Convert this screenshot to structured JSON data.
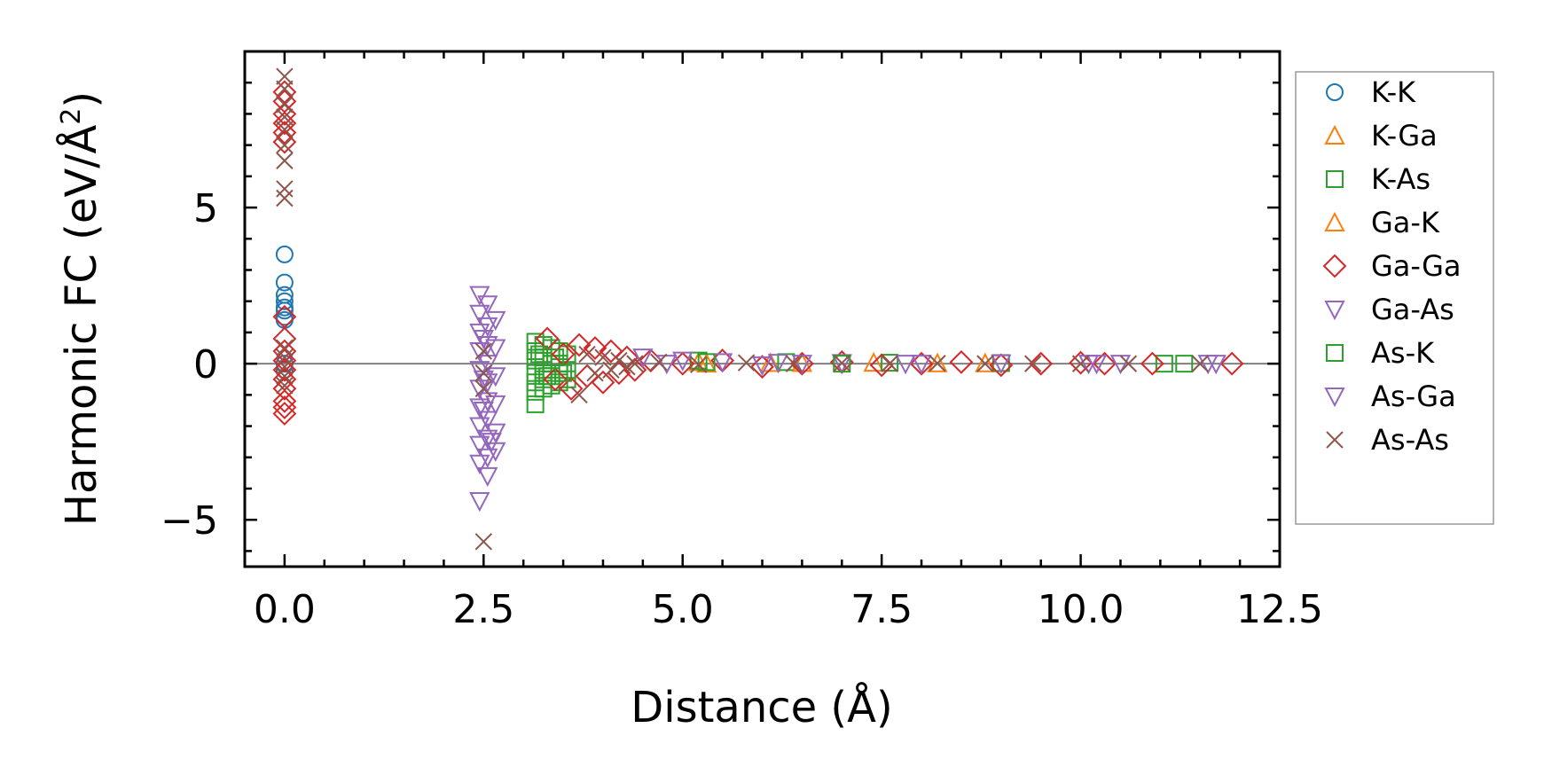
{
  "chart_data": {
    "type": "scatter",
    "title": "",
    "xlabel": "Distance (Å)",
    "ylabel_main": "Harmonic FC (eV/Å",
    "ylabel_sup": "2",
    "ylabel_close": ")",
    "xlim": [
      -0.5,
      12.5
    ],
    "ylim": [
      -6.5,
      10.0
    ],
    "xticks": [
      0.0,
      2.5,
      5.0,
      7.5,
      10.0,
      12.5
    ],
    "xtick_labels": [
      "0.0",
      "2.5",
      "5.0",
      "7.5",
      "10.0",
      "12.5"
    ],
    "yticks": [
      -5,
      0,
      5
    ],
    "ytick_labels": [
      "−5",
      "0",
      "5"
    ],
    "zero_line": true,
    "grid": false,
    "legend_position": "outside-right",
    "series": [
      {
        "name": "K-K",
        "marker": "circle",
        "color": "#1f77b4",
        "points": [
          [
            0.0,
            3.5
          ],
          [
            0.0,
            2.6
          ],
          [
            0.0,
            2.2
          ],
          [
            0.0,
            2.0
          ],
          [
            0.0,
            1.8
          ],
          [
            0.0,
            1.7
          ],
          [
            0.0,
            1.5
          ],
          [
            0.0,
            1.4
          ],
          [
            0.0,
            0.0
          ],
          [
            0.0,
            -0.2
          ]
        ]
      },
      {
        "name": "K-Ga",
        "marker": "triangle-up",
        "color": "#ff7f0e",
        "points": [
          [
            5.2,
            0.05
          ],
          [
            6.1,
            0.02
          ],
          [
            7.4,
            0.03
          ],
          [
            8.8,
            0.01
          ]
        ]
      },
      {
        "name": "K-As",
        "marker": "square",
        "color": "#2ca02c",
        "points": [
          [
            3.15,
            0.7
          ],
          [
            3.15,
            0.4
          ],
          [
            3.15,
            0.1
          ],
          [
            3.15,
            -0.3
          ],
          [
            3.15,
            -0.6
          ],
          [
            3.15,
            -0.9
          ],
          [
            3.15,
            -1.3
          ],
          [
            3.25,
            0.6
          ],
          [
            3.25,
            0.2
          ],
          [
            3.25,
            -0.2
          ],
          [
            3.25,
            -0.5
          ],
          [
            3.25,
            -0.8
          ],
          [
            3.35,
            0.5
          ],
          [
            3.35,
            0.0
          ],
          [
            3.35,
            -0.4
          ],
          [
            3.35,
            -0.7
          ],
          [
            3.45,
            0.4
          ],
          [
            3.45,
            0.0
          ],
          [
            3.45,
            -0.3
          ],
          [
            3.45,
            -0.6
          ],
          [
            3.55,
            0.3
          ],
          [
            3.55,
            -0.2
          ],
          [
            3.55,
            -0.5
          ],
          [
            5.2,
            0.1
          ],
          [
            6.3,
            0.05
          ],
          [
            7.6,
            0.03
          ],
          [
            9.0,
            0.02
          ],
          [
            11.05,
            0.0
          ],
          [
            11.3,
            0.0
          ]
        ]
      },
      {
        "name": "Ga-K",
        "marker": "triangle-up",
        "color": "#ff7f0e",
        "points": [
          [
            5.3,
            0.0
          ],
          [
            6.5,
            0.02
          ],
          [
            8.2,
            0.01
          ]
        ]
      },
      {
        "name": "Ga-Ga",
        "marker": "diamond",
        "color": "#d62728",
        "points": [
          [
            0.0,
            8.7
          ],
          [
            0.0,
            8.4
          ],
          [
            0.0,
            8.0
          ],
          [
            0.0,
            7.7
          ],
          [
            0.0,
            7.4
          ],
          [
            0.0,
            7.1
          ],
          [
            0.0,
            1.5
          ],
          [
            0.0,
            0.8
          ],
          [
            0.0,
            0.4
          ],
          [
            0.0,
            0.1
          ],
          [
            0.0,
            -0.2
          ],
          [
            0.0,
            -0.5
          ],
          [
            0.0,
            -0.8
          ],
          [
            0.0,
            -1.2
          ],
          [
            0.0,
            -1.4
          ],
          [
            0.0,
            -1.6
          ],
          [
            3.3,
            0.8
          ],
          [
            3.4,
            -0.5
          ],
          [
            3.5,
            0.3
          ],
          [
            3.6,
            -0.8
          ],
          [
            3.7,
            0.6
          ],
          [
            3.8,
            -0.4
          ],
          [
            3.9,
            0.5
          ],
          [
            4.0,
            -0.6
          ],
          [
            4.1,
            0.4
          ],
          [
            4.2,
            -0.3
          ],
          [
            4.3,
            0.2
          ],
          [
            4.4,
            -0.2
          ],
          [
            4.6,
            0.1
          ],
          [
            5.0,
            0.0
          ],
          [
            5.5,
            0.1
          ],
          [
            6.0,
            -0.1
          ],
          [
            6.5,
            0.0
          ],
          [
            7.0,
            0.05
          ],
          [
            7.5,
            -0.05
          ],
          [
            8.0,
            0.0
          ],
          [
            8.5,
            0.05
          ],
          [
            9.0,
            -0.05
          ],
          [
            9.5,
            0.0
          ],
          [
            10.0,
            0.03
          ],
          [
            10.3,
            0.0
          ],
          [
            10.9,
            0.0
          ],
          [
            11.9,
            0.0
          ]
        ]
      },
      {
        "name": "Ga-As",
        "marker": "triangle-down",
        "color": "#9467bd",
        "points": [
          [
            2.45,
            2.2
          ],
          [
            2.45,
            1.6
          ],
          [
            2.45,
            1.0
          ],
          [
            2.45,
            0.4
          ],
          [
            2.45,
            -0.2
          ],
          [
            2.45,
            -0.8
          ],
          [
            2.45,
            -1.4
          ],
          [
            2.45,
            -2.0
          ],
          [
            2.45,
            -2.6
          ],
          [
            2.45,
            -3.2
          ],
          [
            2.45,
            -4.4
          ],
          [
            2.55,
            1.9
          ],
          [
            2.55,
            1.2
          ],
          [
            2.55,
            0.6
          ],
          [
            2.55,
            0.0
          ],
          [
            2.55,
            -0.6
          ],
          [
            2.55,
            -1.2
          ],
          [
            2.55,
            -1.8
          ],
          [
            2.55,
            -2.4
          ],
          [
            2.55,
            -3.0
          ],
          [
            2.55,
            -3.6
          ],
          [
            2.65,
            1.4
          ],
          [
            2.65,
            0.5
          ],
          [
            2.65,
            -0.4
          ],
          [
            2.65,
            -1.3
          ],
          [
            2.65,
            -2.2
          ],
          [
            2.65,
            -2.8
          ],
          [
            4.5,
            0.2
          ],
          [
            5.0,
            0.1
          ],
          [
            5.5,
            0.05
          ],
          [
            6.0,
            -0.05
          ],
          [
            6.5,
            0.0
          ],
          [
            7.0,
            0.02
          ],
          [
            8.0,
            0.0
          ],
          [
            9.0,
            0.01
          ],
          [
            10.1,
            0.0
          ],
          [
            10.5,
            0.0
          ],
          [
            11.7,
            0.0
          ]
        ]
      },
      {
        "name": "As-K",
        "marker": "square",
        "color": "#2ca02c",
        "points": [
          [
            3.2,
            0.3
          ],
          [
            3.3,
            -0.4
          ],
          [
            3.4,
            0.2
          ],
          [
            3.5,
            -0.3
          ],
          [
            5.3,
            0.05
          ],
          [
            7.0,
            0.0
          ]
        ]
      },
      {
        "name": "As-Ga",
        "marker": "triangle-down",
        "color": "#9467bd",
        "points": [
          [
            2.5,
            0.8
          ],
          [
            2.5,
            -0.5
          ],
          [
            2.5,
            -1.5
          ],
          [
            2.6,
            -2.5
          ],
          [
            4.8,
            0.0
          ],
          [
            6.2,
            0.03
          ],
          [
            7.8,
            0.0
          ],
          [
            10.2,
            0.0
          ],
          [
            11.6,
            0.0
          ]
        ]
      },
      {
        "name": "As-As",
        "marker": "x",
        "color": "#8c564b",
        "points": [
          [
            0.0,
            9.2
          ],
          [
            0.0,
            8.8
          ],
          [
            0.0,
            8.3
          ],
          [
            0.0,
            7.9
          ],
          [
            0.0,
            7.5
          ],
          [
            0.0,
            7.0
          ],
          [
            0.0,
            6.5
          ],
          [
            0.0,
            5.6
          ],
          [
            0.0,
            5.3
          ],
          [
            0.0,
            0.5
          ],
          [
            0.0,
            0.2
          ],
          [
            0.0,
            -0.1
          ],
          [
            0.0,
            -0.4
          ],
          [
            0.0,
            -0.7
          ],
          [
            2.5,
            0.4
          ],
          [
            2.5,
            -0.3
          ],
          [
            2.5,
            -0.8
          ],
          [
            2.5,
            -5.7
          ],
          [
            3.7,
            -1.0
          ],
          [
            3.8,
            0.3
          ],
          [
            3.9,
            -0.3
          ],
          [
            4.0,
            0.2
          ],
          [
            4.1,
            -0.2
          ],
          [
            4.2,
            0.1
          ],
          [
            4.3,
            -0.1
          ],
          [
            4.4,
            0.0
          ],
          [
            4.7,
            0.05
          ],
          [
            5.2,
            -0.03
          ],
          [
            5.8,
            0.03
          ],
          [
            6.4,
            0.0
          ],
          [
            7.0,
            0.02
          ],
          [
            7.6,
            0.0
          ],
          [
            8.2,
            0.01
          ],
          [
            8.8,
            0.0
          ],
          [
            9.4,
            0.0
          ],
          [
            10.0,
            0.0
          ],
          [
            10.6,
            0.0
          ],
          [
            11.5,
            0.0
          ]
        ]
      }
    ]
  }
}
